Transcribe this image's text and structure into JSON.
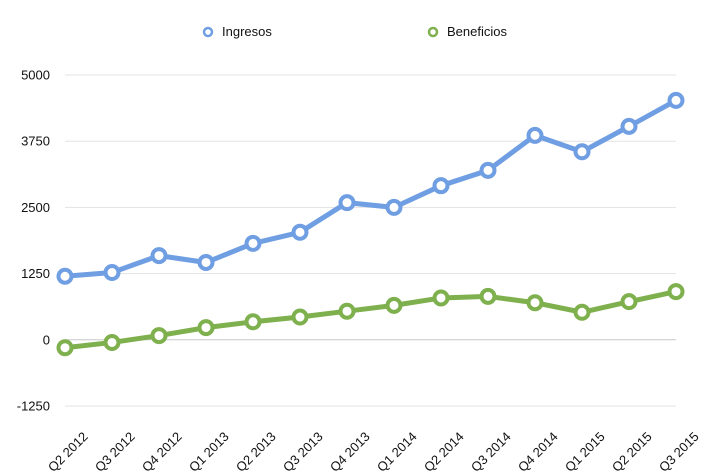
{
  "chart_data": {
    "type": "line",
    "title": "",
    "xlabel": "",
    "ylabel": "",
    "categories": [
      "Q2 2012",
      "Q3 2012",
      "Q4 2012",
      "Q1 2013",
      "Q2 2013",
      "Q3 2013",
      "Q4 2013",
      "Q1 2014",
      "Q2 2014",
      "Q3 2014",
      "Q4 2014",
      "Q1 2015",
      "Q2 2015",
      "Q3 2015"
    ],
    "yticks": [
      "5000",
      "3750",
      "2500",
      "1250",
      "0",
      "-1250"
    ],
    "ylim": [
      -1250,
      5000
    ],
    "grid": true,
    "legend_position": "top",
    "series": [
      {
        "name": "Ingresos",
        "color": "#6f9ee3",
        "values": [
          1200,
          1270,
          1590,
          1460,
          1820,
          2030,
          2590,
          2500,
          2910,
          3200,
          3860,
          3550,
          4030,
          4520
        ]
      },
      {
        "name": "Beneficios",
        "color": "#7fb04e",
        "values": [
          -150,
          -50,
          80,
          230,
          340,
          430,
          540,
          650,
          790,
          820,
          700,
          520,
          720,
          910
        ]
      }
    ]
  }
}
